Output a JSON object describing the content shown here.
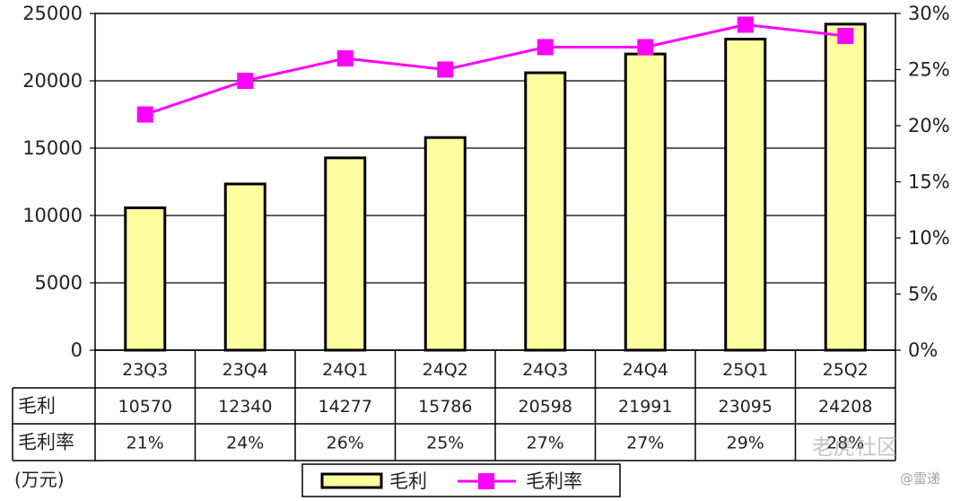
{
  "chart_data": {
    "type": "bar",
    "categories": [
      "23Q3",
      "23Q4",
      "24Q1",
      "24Q2",
      "24Q3",
      "24Q4",
      "25Q1",
      "25Q2"
    ],
    "series": [
      {
        "name": "毛利",
        "type": "bar",
        "axis": "left",
        "values": [
          10570,
          12340,
          14277,
          15786,
          20598,
          21991,
          23095,
          24208
        ]
      },
      {
        "name": "毛利率",
        "type": "line",
        "axis": "right",
        "values": [
          21,
          24,
          26,
          25,
          27,
          27,
          29,
          28
        ]
      }
    ],
    "table_rows": [
      {
        "label": "毛利",
        "cells": [
          "10570",
          "12340",
          "14277",
          "15786",
          "20598",
          "21991",
          "23095",
          "24208"
        ]
      },
      {
        "label": "毛利率",
        "cells": [
          "21%",
          "24%",
          "26%",
          "25%",
          "27%",
          "27%",
          "29%",
          "28%"
        ]
      }
    ],
    "y_left": {
      "ticks": [
        "0",
        "5000",
        "10000",
        "15000",
        "20000",
        "25000"
      ],
      "ylim": [
        0,
        25000
      ]
    },
    "y_right": {
      "ticks": [
        "0%",
        "5%",
        "10%",
        "15%",
        "20%",
        "25%",
        "30%"
      ],
      "ylim": [
        0,
        30
      ]
    },
    "unit_label": "(万元)",
    "legend": {
      "position": "bottom"
    },
    "grid": true,
    "colors": {
      "bar_fill": "#ffffa0",
      "bar_stroke": "#000000",
      "line": "#ff00ff",
      "marker": "#ff00ff"
    }
  },
  "watermark": {
    "text": "老虎社区",
    "credit": "@雷递"
  }
}
